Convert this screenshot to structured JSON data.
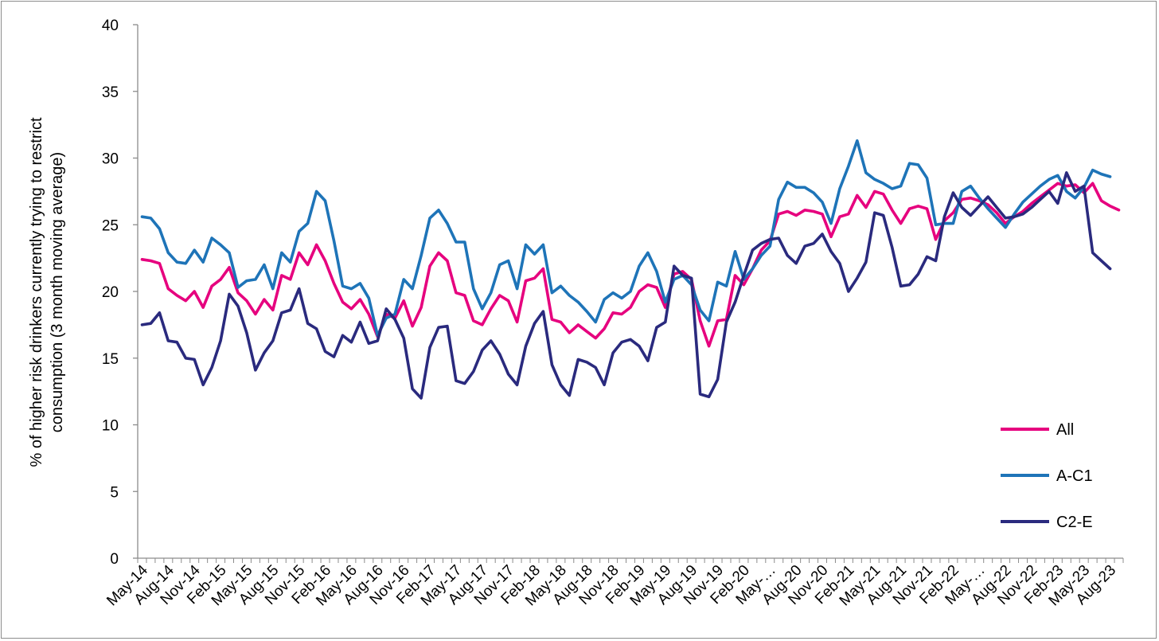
{
  "chart_data": {
    "type": "line",
    "title": "",
    "xlabel": "",
    "ylabel": "% of higher risk drinkers currently trying to restrict consumption (3 month moving average)",
    "ylabel_lines": [
      "% of higher risk drinkers currently trying to restrict",
      "consumption (3 month moving average)"
    ],
    "ylim": [
      0,
      40
    ],
    "yticks": [
      0,
      5,
      10,
      15,
      20,
      25,
      30,
      35,
      40
    ],
    "grid": false,
    "legend_position": "bottom-right",
    "xtick_labels": [
      "May-14",
      "Aug-14",
      "Nov-14",
      "Feb-15",
      "May-15",
      "Aug-15",
      "Nov-15",
      "Feb-16",
      "May-16",
      "Aug-16",
      "Nov-16",
      "Feb-17",
      "May-17",
      "Aug-17",
      "Nov-17",
      "Feb-18",
      "May-18",
      "Aug-18",
      "Nov-18",
      "Feb-19",
      "May-19",
      "Aug-19",
      "Nov-19",
      "Feb-20",
      "May-…",
      "Aug-20",
      "Nov-20",
      "Feb-21",
      "May-21",
      "Aug-21",
      "Nov-21",
      "Feb-22",
      "May-…",
      "Aug-22",
      "Nov-22",
      "Feb-23",
      "May-23",
      "Aug-23"
    ],
    "series": [
      {
        "name": "All",
        "color": "#e6007e",
        "values": [
          22.4,
          22.3,
          22.1,
          20.2,
          19.7,
          19.3,
          20.0,
          18.8,
          20.4,
          20.9,
          21.8,
          19.9,
          19.3,
          18.3,
          19.4,
          18.6,
          21.2,
          20.9,
          22.9,
          22.0,
          23.5,
          22.3,
          20.6,
          19.2,
          18.7,
          19.4,
          18.3,
          16.6,
          18.3,
          18.0,
          19.3,
          17.4,
          18.8,
          21.9,
          22.9,
          22.3,
          19.9,
          19.7,
          17.8,
          17.5,
          18.7,
          19.7,
          19.3,
          17.7,
          20.8,
          21.0,
          21.7,
          17.9,
          17.7,
          16.9,
          17.5,
          17.0,
          16.5,
          17.2,
          18.4,
          18.3,
          18.8,
          20.0,
          20.5,
          20.3,
          18.8,
          21.3,
          21.5,
          20.9,
          17.8,
          15.9,
          17.8,
          17.9,
          21.2,
          20.5,
          21.7,
          23.1,
          23.8,
          25.8,
          26.0,
          25.7,
          26.1,
          26.0,
          25.8,
          24.1,
          25.6,
          25.8,
          27.2,
          26.3,
          27.5,
          27.3,
          26.1,
          25.1,
          26.2,
          26.4,
          26.2,
          23.9,
          25.3,
          25.9,
          26.9,
          27.0,
          26.8,
          26.5,
          25.9,
          25.1,
          25.6,
          26.0,
          26.6,
          27.1,
          27.6,
          28.1,
          27.9,
          28.0,
          27.4,
          28.1,
          26.8,
          26.4,
          26.1
        ]
      },
      {
        "name": "A-C1",
        "color": "#1e74b8",
        "values": [
          25.6,
          25.5,
          24.7,
          22.9,
          22.2,
          22.1,
          23.1,
          22.2,
          24.0,
          23.5,
          22.9,
          20.3,
          20.8,
          20.9,
          22.0,
          20.2,
          22.9,
          22.2,
          24.5,
          25.1,
          27.5,
          26.8,
          23.8,
          20.4,
          20.2,
          20.6,
          19.5,
          16.7,
          18.0,
          18.3,
          20.9,
          20.2,
          22.7,
          25.5,
          26.1,
          25.1,
          23.7,
          23.7,
          20.2,
          18.7,
          19.9,
          22.0,
          22.3,
          20.2,
          23.5,
          22.8,
          23.5,
          19.9,
          20.4,
          19.7,
          19.2,
          18.5,
          17.7,
          19.4,
          19.9,
          19.5,
          20.0,
          21.9,
          22.9,
          21.5,
          19.2,
          20.9,
          21.2,
          20.5,
          18.6,
          17.8,
          20.7,
          20.4,
          23.0,
          20.9,
          21.7,
          22.7,
          23.4,
          26.9,
          28.2,
          27.8,
          27.8,
          27.4,
          26.7,
          25.1,
          27.7,
          29.4,
          31.3,
          28.9,
          28.4,
          28.1,
          27.7,
          27.9,
          29.6,
          29.5,
          28.5,
          25.0,
          25.1,
          25.1,
          27.5,
          27.9,
          27.0,
          26.2,
          25.5,
          24.8,
          25.8,
          26.7,
          27.3,
          27.9,
          28.4,
          28.7,
          27.5,
          27.0,
          27.8,
          29.1,
          28.8,
          28.6
        ]
      },
      {
        "name": "C2-E",
        "color": "#2a2a7e",
        "values": [
          17.5,
          17.6,
          18.4,
          16.3,
          16.2,
          15.0,
          14.9,
          13.0,
          14.3,
          16.3,
          19.8,
          18.9,
          16.9,
          14.1,
          15.4,
          16.3,
          18.4,
          18.6,
          20.2,
          17.6,
          17.2,
          15.5,
          15.1,
          16.7,
          16.2,
          17.7,
          16.1,
          16.3,
          18.7,
          17.9,
          16.5,
          12.7,
          12.0,
          15.8,
          17.3,
          17.4,
          13.3,
          13.1,
          14.0,
          15.6,
          16.3,
          15.3,
          13.8,
          13.0,
          15.9,
          17.6,
          18.5,
          14.5,
          13.0,
          12.2,
          14.9,
          14.7,
          14.3,
          13.0,
          15.4,
          16.2,
          16.4,
          15.9,
          14.8,
          17.3,
          17.7,
          21.9,
          21.2,
          21.0,
          12.3,
          12.1,
          13.4,
          17.7,
          19.2,
          21.2,
          23.1,
          23.6,
          23.9,
          24.0,
          22.7,
          22.1,
          23.4,
          23.6,
          24.3,
          23.0,
          22.1,
          20.0,
          21.0,
          22.2,
          25.9,
          25.7,
          23.3,
          20.4,
          20.5,
          21.3,
          22.6,
          22.3,
          25.6,
          27.4,
          26.3,
          25.7,
          26.4,
          27.1,
          26.3,
          25.5,
          25.6,
          25.8,
          26.3,
          26.9,
          27.5,
          26.6,
          28.9,
          27.5,
          27.9,
          22.9,
          22.3,
          21.7
        ]
      }
    ]
  }
}
